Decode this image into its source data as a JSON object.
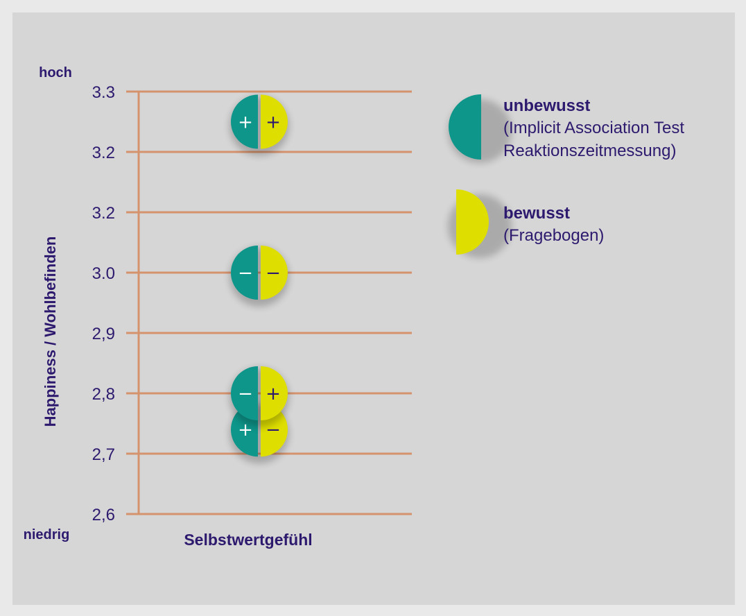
{
  "chart_data": {
    "type": "scatter",
    "ylabel": "Happiness / Wohlbefinden",
    "xlabel": "Selbstwertgefühl",
    "y_high_label": "hoch",
    "y_low_label": "niedrig",
    "tick_labels": [
      "2,6",
      "2,7",
      "2,8",
      "2,9",
      "3.0",
      "3.2",
      "3.2",
      "3.3"
    ],
    "grid": true,
    "points": [
      {
        "y": 3.25,
        "unbewusst": "+",
        "bewusst": "+"
      },
      {
        "y": 3.0,
        "unbewusst": "−",
        "bewusst": "−"
      },
      {
        "y": 2.8,
        "unbewusst": "−",
        "bewusst": "+"
      },
      {
        "y": 2.74,
        "unbewusst": "+",
        "bewusst": "−"
      }
    ],
    "legend": [
      {
        "key": "unbewusst",
        "title": "unbewusst",
        "desc": [
          "(Implicit Association Test",
          "Reaktionszeitmessung)"
        ],
        "color": "#0e968a"
      },
      {
        "key": "bewusst",
        "title": "bewusst",
        "desc": [
          "(Fragebogen)"
        ],
        "color": "#dede00"
      }
    ],
    "colors": {
      "grid": "#d4926d",
      "label": "#2d1a6e",
      "teal": "#0e968a",
      "yellow": "#dede00"
    }
  }
}
